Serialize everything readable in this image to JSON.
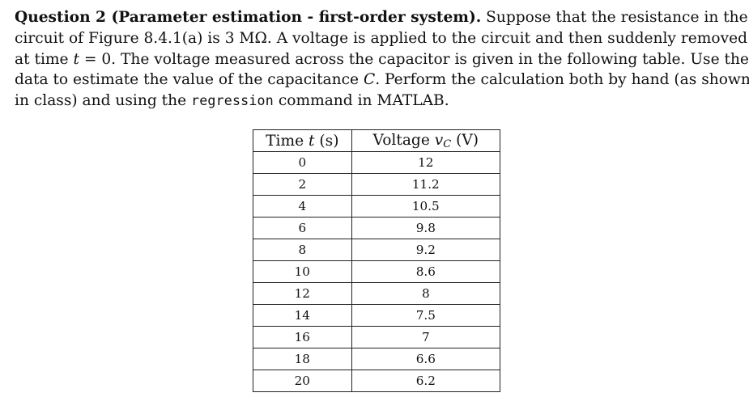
{
  "question": {
    "line1": {
      "bold": "Question 2 (Parameter estimation - first-order system).",
      "rest": " Suppose that the resistance in the"
    },
    "line2": "circuit of Figure 8.4.1(a) is 3 MΩ. A voltage is applied to the circuit and then suddenly removed",
    "line3": {
      "before": "at time ",
      "math_t": "t",
      "after": " = 0. The voltage measured across the capacitor is given in the following table. Use the"
    },
    "line4": {
      "before": "data to estimate the value of the capacitance ",
      "math_C": "C",
      "after": ". Perform the calculation both by hand (as shown"
    },
    "line5": {
      "before": "in class) and using the ",
      "code": "regression",
      "after": " command in MATLAB."
    }
  },
  "table": {
    "headers": [
      {
        "prefix": "Time ",
        "var": "t",
        "suffix": " (s)"
      },
      {
        "prefix": "Voltage ",
        "var": "v",
        "sub": "C",
        "suffix": " (V)"
      }
    ],
    "rows": [
      [
        "0",
        "12"
      ],
      [
        "2",
        "11.2"
      ],
      [
        "4",
        "10.5"
      ],
      [
        "6",
        "9.8"
      ],
      [
        "8",
        "9.2"
      ],
      [
        "10",
        "8.6"
      ],
      [
        "12",
        "8"
      ],
      [
        "14",
        "7.5"
      ],
      [
        "16",
        "7"
      ],
      [
        "18",
        "6.6"
      ],
      [
        "20",
        "6.2"
      ]
    ]
  }
}
